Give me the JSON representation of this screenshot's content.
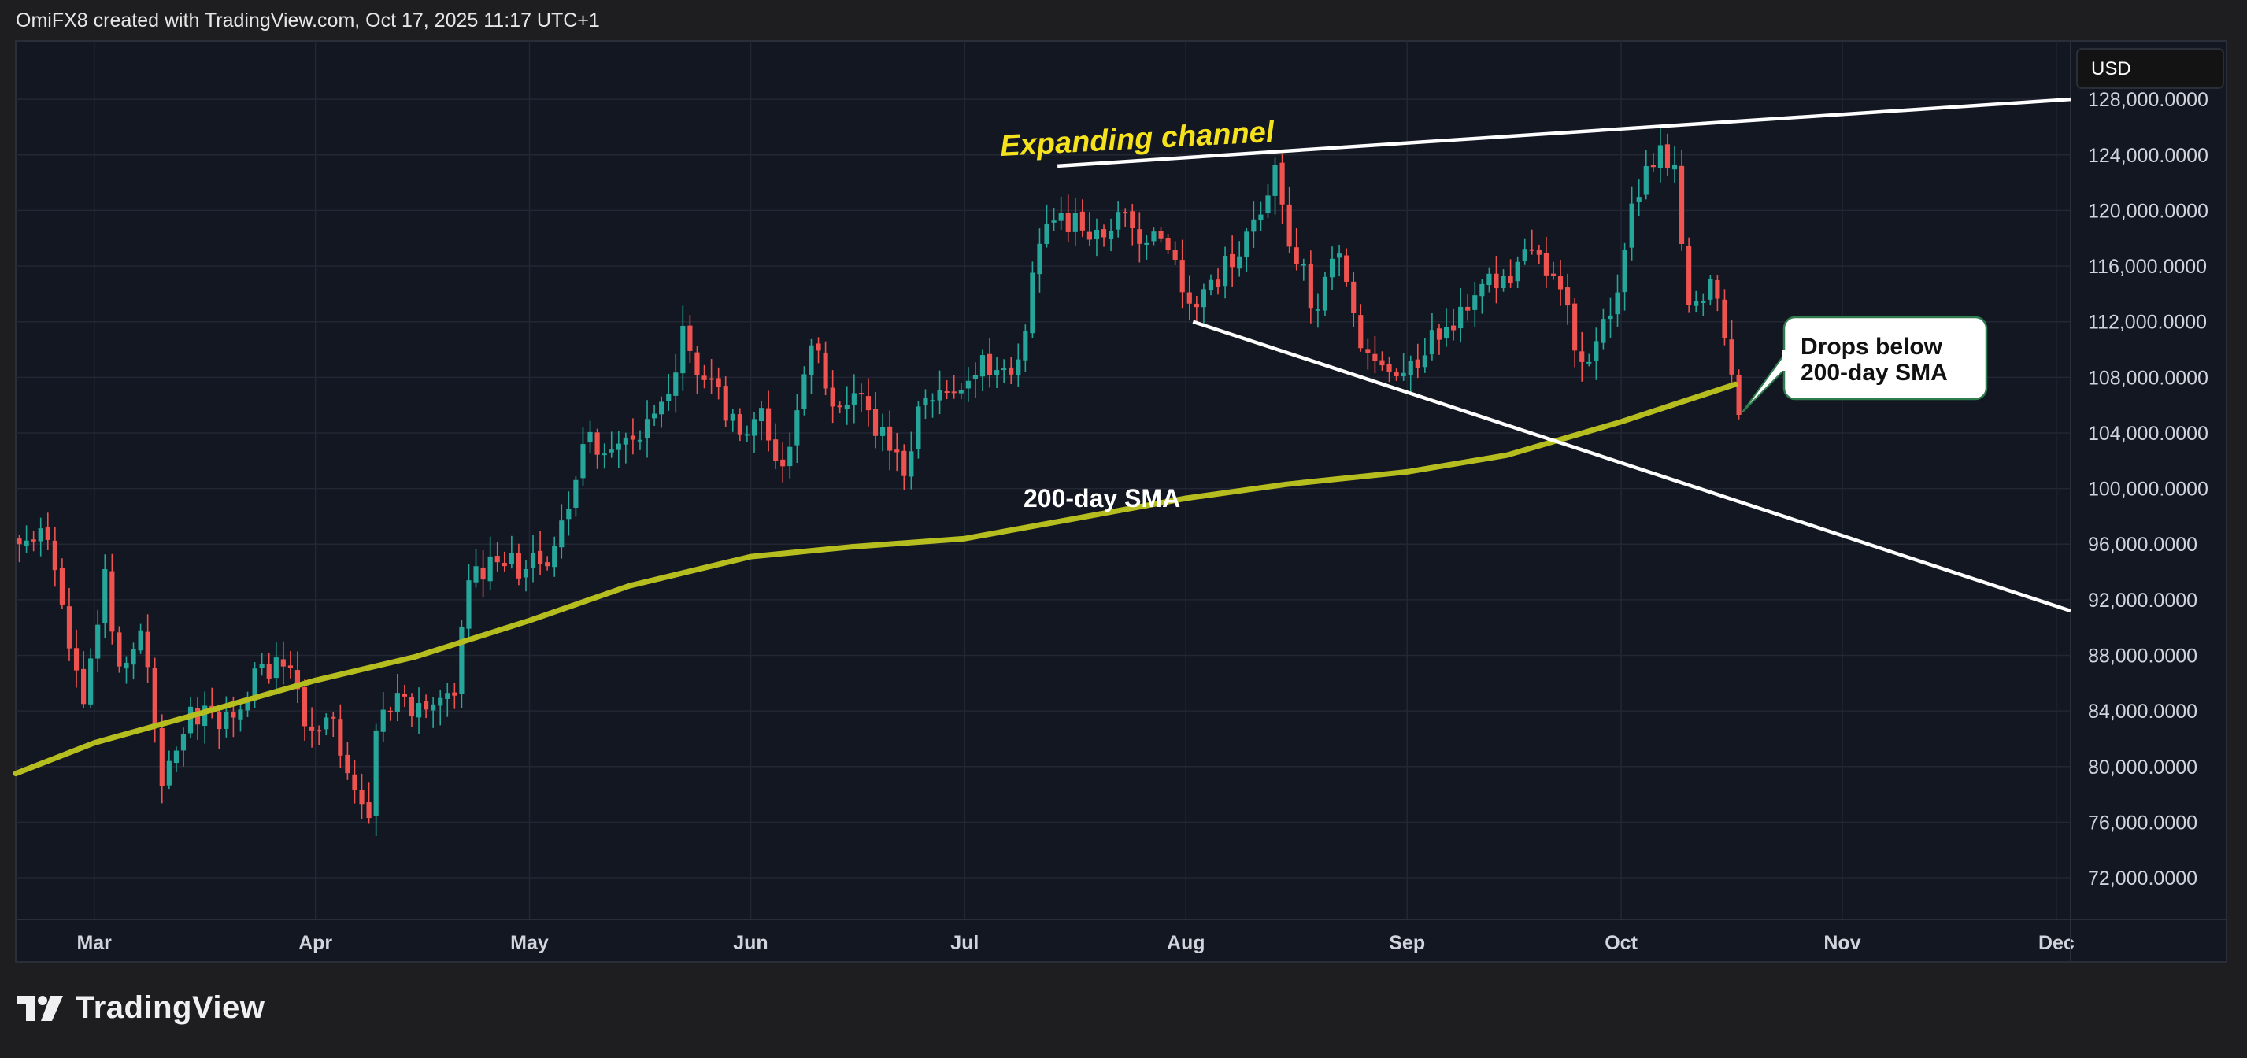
{
  "header": {
    "attribution": "OmiFX8 created with TradingView.com, Oct 17, 2025 11:17 UTC+1"
  },
  "footer": {
    "brand": "TradingView",
    "logo_icon": "tradingview-logo-icon"
  },
  "currency_button": "USD",
  "colors": {
    "background": "#131722",
    "up_candle": "#26a69a",
    "down_candle": "#ef5350",
    "sma": "#b5bd1f",
    "trendline": "#ffffff",
    "channel_label": "#f5e21d"
  },
  "annotations": {
    "channel_label": "Expanding channel",
    "sma_label": "200-day SMA",
    "callout_line1": "Drops below",
    "callout_line2": "200-day SMA"
  },
  "chart_data": {
    "type": "candlestick",
    "instrument_currency": "USD",
    "x_tick_labels": [
      "Mar",
      "Apr",
      "May",
      "Jun",
      "Jul",
      "Aug",
      "Sep",
      "Oct",
      "Nov",
      "Dec"
    ],
    "x_range": [
      "2025-02-18",
      "2025-12-03"
    ],
    "y_tick_labels": [
      "128,000.0000",
      "124,000.0000",
      "120,000.0000",
      "116,000.0000",
      "112,000.0000",
      "108,000.0000",
      "104,000.0000",
      "100,000.0000",
      "96,000.0000",
      "92,000.0000",
      "88,000.0000",
      "84,000.0000",
      "80,000.0000",
      "76,000.0000",
      "72,000.0000"
    ],
    "y_ticks": [
      128000,
      124000,
      120000,
      116000,
      112000,
      108000,
      104000,
      100000,
      96000,
      92000,
      88000,
      84000,
      80000,
      76000,
      72000
    ],
    "ylim": [
      69000,
      132200
    ],
    "grid": true,
    "close_anchors": [
      [
        "2025-02-18",
        96000
      ],
      [
        "2025-02-22",
        96300
      ],
      [
        "2025-02-25",
        88500
      ],
      [
        "2025-02-27",
        84500
      ],
      [
        "2025-03-02",
        94200
      ],
      [
        "2025-03-04",
        87200
      ],
      [
        "2025-03-07",
        89800
      ],
      [
        "2025-03-10",
        78600
      ],
      [
        "2025-03-14",
        84300
      ],
      [
        "2025-03-18",
        82700
      ],
      [
        "2025-03-21",
        84100
      ],
      [
        "2025-03-24",
        87400
      ],
      [
        "2025-03-27",
        87200
      ],
      [
        "2025-03-31",
        82600
      ],
      [
        "2025-04-03",
        83500
      ],
      [
        "2025-04-06",
        78300
      ],
      [
        "2025-04-08",
        76300
      ],
      [
        "2025-04-09",
        82600
      ],
      [
        "2025-04-12",
        85300
      ],
      [
        "2025-04-16",
        84100
      ],
      [
        "2025-04-20",
        85100
      ],
      [
        "2025-04-22",
        93400
      ],
      [
        "2025-04-26",
        94700
      ],
      [
        "2025-04-30",
        94200
      ],
      [
        "2025-05-04",
        95900
      ],
      [
        "2025-05-08",
        103200
      ],
      [
        "2025-05-12",
        102800
      ],
      [
        "2025-05-16",
        103500
      ],
      [
        "2025-05-20",
        106800
      ],
      [
        "2025-05-22",
        111700
      ],
      [
        "2025-05-25",
        107800
      ],
      [
        "2025-05-30",
        103900
      ],
      [
        "2025-06-02",
        105800
      ],
      [
        "2025-06-05",
        101600
      ],
      [
        "2025-06-09",
        110300
      ],
      [
        "2025-06-12",
        105900
      ],
      [
        "2025-06-16",
        106800
      ],
      [
        "2025-06-22",
        100900
      ],
      [
        "2025-06-24",
        105900
      ],
      [
        "2025-06-30",
        107100
      ],
      [
        "2025-07-03",
        109600
      ],
      [
        "2025-07-07",
        108200
      ],
      [
        "2025-07-09",
        111300
      ],
      [
        "2025-07-11",
        117600
      ],
      [
        "2025-07-14",
        119800
      ],
      [
        "2025-07-18",
        117900
      ],
      [
        "2025-07-22",
        119900
      ],
      [
        "2025-07-25",
        117600
      ],
      [
        "2025-07-28",
        118000
      ],
      [
        "2025-08-01",
        113300
      ],
      [
        "2025-08-04",
        115000
      ],
      [
        "2025-08-08",
        116700
      ],
      [
        "2025-08-13",
        123300
      ],
      [
        "2025-08-15",
        117400
      ],
      [
        "2025-08-19",
        112900
      ],
      [
        "2025-08-22",
        116900
      ],
      [
        "2025-08-25",
        110100
      ],
      [
        "2025-08-29",
        108400
      ],
      [
        "2025-09-01",
        109200
      ],
      [
        "2025-09-05",
        110700
      ],
      [
        "2025-09-10",
        113900
      ],
      [
        "2025-09-14",
        115300
      ],
      [
        "2025-09-18",
        117100
      ],
      [
        "2025-09-21",
        115300
      ],
      [
        "2025-09-25",
        109100
      ],
      [
        "2025-09-28",
        112200
      ],
      [
        "2025-09-30",
        114100
      ],
      [
        "2025-10-02",
        120500
      ],
      [
        "2025-10-06",
        124700
      ],
      [
        "2025-10-08",
        123300
      ],
      [
        "2025-10-10",
        113200
      ],
      [
        "2025-10-13",
        115100
      ],
      [
        "2025-10-15",
        110800
      ],
      [
        "2025-10-16",
        108200
      ],
      [
        "2025-10-17",
        105300
      ]
    ],
    "sma_200": [
      [
        "2025-02-18",
        79500
      ],
      [
        "2025-03-01",
        81700
      ],
      [
        "2025-03-15",
        83700
      ],
      [
        "2025-04-01",
        86200
      ],
      [
        "2025-04-15",
        87900
      ],
      [
        "2025-05-01",
        90500
      ],
      [
        "2025-05-15",
        93000
      ],
      [
        "2025-06-01",
        95100
      ],
      [
        "2025-06-15",
        95800
      ],
      [
        "2025-07-01",
        96400
      ],
      [
        "2025-07-15",
        97700
      ],
      [
        "2025-08-01",
        99300
      ],
      [
        "2025-08-15",
        100300
      ],
      [
        "2025-09-01",
        101200
      ],
      [
        "2025-09-15",
        102400
      ],
      [
        "2025-10-01",
        104800
      ],
      [
        "2025-10-17",
        107500
      ]
    ],
    "trendlines": [
      {
        "name": "upper",
        "from": [
          "2025-07-14",
          123200
        ],
        "to": [
          "2025-12-03",
          128000
        ]
      },
      {
        "name": "lower",
        "from": [
          "2025-08-02",
          112000
        ],
        "to": [
          "2025-12-03",
          91200
        ]
      }
    ],
    "callout_point": [
      "2025-10-17",
      105500
    ]
  }
}
